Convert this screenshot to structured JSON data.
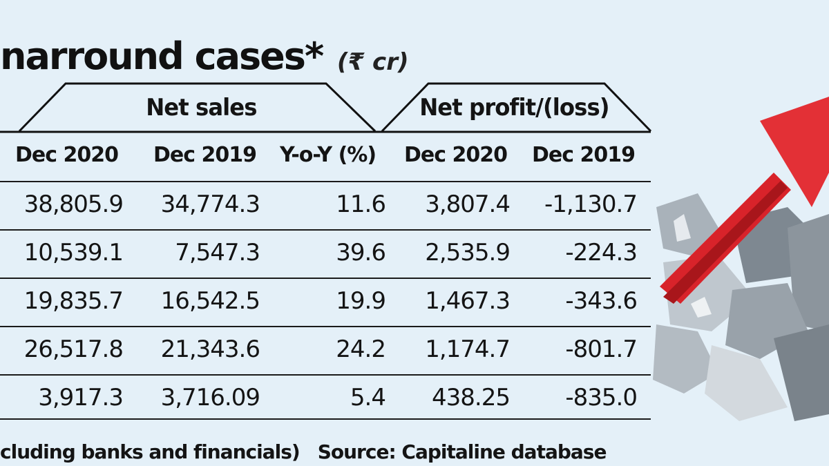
{
  "title": "narround cases*",
  "unit": "(₹ cr)",
  "chart_data": {
    "type": "table",
    "groups": [
      {
        "label": "Net sales",
        "columns": [
          "Dec 2020",
          "Dec 2019",
          "Y-o-Y (%)"
        ]
      },
      {
        "label": "Net profit/(loss)",
        "columns": [
          "Dec 2020",
          "Dec 2019"
        ]
      }
    ],
    "headers": [
      "Dec 2020",
      "Dec 2019",
      "Y-o-Y (%)",
      "Dec 2020",
      "Dec 2019"
    ],
    "rows": [
      [
        "38,805.9",
        "34,774.3",
        "11.6",
        "3,807.4",
        "-1,130.7"
      ],
      [
        "10,539.1",
        "7,547.3",
        "39.6",
        "2,535.9",
        "-224.3"
      ],
      [
        "19,835.7",
        "16,542.5",
        "19.9",
        "1,467.3",
        "-343.6"
      ],
      [
        "26,517.8",
        "21,343.6",
        "24.2",
        "1,174.7",
        "-801.7"
      ],
      [
        "3,917.3",
        "3,716.09",
        "5.4",
        "438.25",
        "-835.0"
      ]
    ]
  },
  "footnote": "cluding banks and financials)",
  "source": "Source: Capitaline database",
  "colors": {
    "background": "#e4f0f8",
    "arrow": "#d8232a",
    "rubble": "#9aa3ab"
  }
}
